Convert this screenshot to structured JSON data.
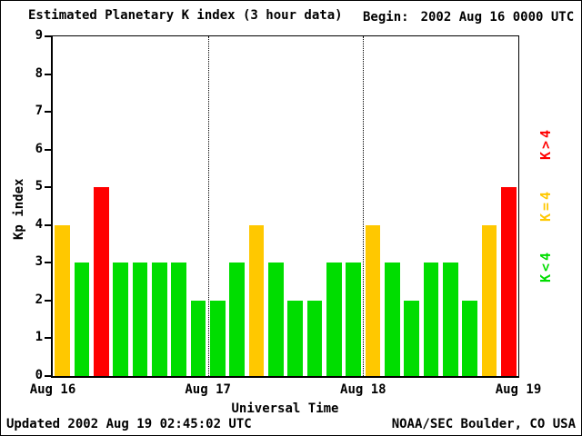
{
  "header": {
    "title": "Estimated Planetary K index (3 hour data)",
    "begin_label": "Begin:",
    "begin_value": "2002 Aug 16 0000 UTC"
  },
  "axis": {
    "y_label": "Kp index",
    "x_label": "Universal Time"
  },
  "legend": [
    {
      "label": "K>4",
      "color": "#ff0000"
    },
    {
      "label": "K=4",
      "color": "#ffc800"
    },
    {
      "label": "K<4",
      "color": "#00dd00"
    }
  ],
  "footer": {
    "updated": "Updated 2002 Aug 19 02:45:02 UTC",
    "source": "NOAA/SEC Boulder, CO USA"
  },
  "chart_data": {
    "type": "bar",
    "title": "Estimated Planetary K index (3 hour data)",
    "xlabel": "Universal Time",
    "ylabel": "Kp index",
    "ylim": [
      0,
      9
    ],
    "yticks": [
      0,
      1,
      2,
      3,
      4,
      5,
      6,
      7,
      8,
      9
    ],
    "x_day_labels": [
      "Aug 16",
      "Aug 17",
      "Aug 18",
      "Aug 19"
    ],
    "hours_per_bar": 3,
    "values": [
      4,
      3,
      5,
      3,
      3,
      3,
      3,
      2,
      2,
      3,
      4,
      3,
      2,
      2,
      3,
      3,
      4,
      3,
      2,
      3,
      3,
      2,
      4,
      5
    ],
    "bar_colors_rule": {
      "below_4": "#00dd00",
      "equal_4": "#ffc800",
      "above_4": "#ff0000"
    },
    "grid_day_boundaries": true,
    "legend_position": "right"
  }
}
